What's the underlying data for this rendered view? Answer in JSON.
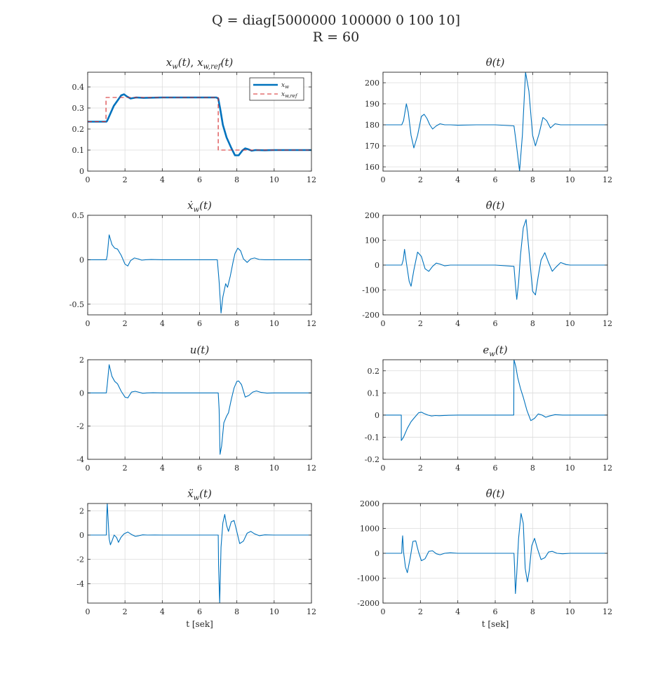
{
  "figure": {
    "suptitle_line1": "Q = diag[5000000  100000  0  100  10]",
    "suptitle_line2": "R = 60"
  },
  "chart_data": [
    {
      "type": "line",
      "title": "x_w(t), x_w,ref(t)",
      "xlabel": "",
      "xlim": [
        0,
        12
      ],
      "ylim": [
        0,
        0.47
      ],
      "grid": true,
      "xticks": [
        0,
        2,
        4,
        6,
        8,
        10,
        12
      ],
      "yticks": [
        0,
        0.1,
        0.2,
        0.3,
        0.4
      ],
      "ytick_labels": [
        "0",
        "0.1",
        "0.2",
        "0.3",
        "0.4"
      ],
      "legend": {
        "location": "top-right",
        "entries": [
          "x_w",
          "x_w,ref"
        ]
      },
      "series": [
        {
          "name": "x_w",
          "color": "#0072BD",
          "width": 2.6,
          "dash": "",
          "x": [
            0,
            1,
            1.05,
            1.2,
            1.4,
            1.6,
            1.8,
            1.95,
            2.1,
            2.3,
            2.6,
            3.0,
            4,
            5,
            6,
            6.9,
            7.0,
            7.1,
            7.25,
            7.45,
            7.7,
            7.9,
            8.1,
            8.3,
            8.45,
            8.6,
            8.8,
            9.0,
            9.5,
            10,
            12
          ],
          "y": [
            0.235,
            0.235,
            0.24,
            0.27,
            0.31,
            0.335,
            0.36,
            0.365,
            0.355,
            0.345,
            0.35,
            0.348,
            0.35,
            0.35,
            0.35,
            0.35,
            0.345,
            0.3,
            0.22,
            0.16,
            0.11,
            0.075,
            0.075,
            0.098,
            0.108,
            0.104,
            0.097,
            0.1,
            0.099,
            0.1,
            0.1
          ]
        },
        {
          "name": "x_w,ref",
          "color": "#D62728",
          "width": 1.1,
          "dash": "6,4",
          "x": [
            0,
            0.98,
            0.98,
            7.0,
            7.0,
            12
          ],
          "y": [
            0.235,
            0.235,
            0.35,
            0.35,
            0.1,
            0.1
          ]
        }
      ]
    },
    {
      "type": "line",
      "title": "θ(t)",
      "xlabel": "",
      "xlim": [
        0,
        12
      ],
      "ylim": [
        158,
        205
      ],
      "grid": true,
      "xticks": [
        0,
        2,
        4,
        6,
        8,
        10,
        12
      ],
      "yticks": [
        160,
        170,
        180,
        190,
        200
      ],
      "ytick_labels": [
        "160",
        "170",
        "180",
        "190",
        "200"
      ],
      "series": [
        {
          "name": "",
          "color": "#0072BD",
          "width": 1.1,
          "dash": "",
          "x": [
            0,
            1,
            1.1,
            1.25,
            1.35,
            1.5,
            1.65,
            1.85,
            2.05,
            2.2,
            2.35,
            2.5,
            2.65,
            2.85,
            3.05,
            3.3,
            3.6,
            4,
            5,
            6,
            7.0,
            7.1,
            7.3,
            7.45,
            7.62,
            7.8,
            8.0,
            8.15,
            8.35,
            8.55,
            8.75,
            8.95,
            9.2,
            9.5,
            10,
            12
          ],
          "y": [
            180,
            180,
            182,
            190,
            186,
            175,
            169,
            175,
            184,
            185,
            183,
            180,
            178,
            179.5,
            180.5,
            180,
            180,
            179.8,
            180,
            180,
            179.5,
            173,
            158,
            175,
            205,
            196,
            175,
            170,
            176,
            183.5,
            182,
            178.5,
            180.5,
            180,
            180,
            180
          ]
        }
      ]
    },
    {
      "type": "line",
      "title": "ẋ_w(t)",
      "xlabel": "",
      "xlim": [
        0,
        12
      ],
      "ylim": [
        -0.62,
        0.5
      ],
      "grid": true,
      "xticks": [
        0,
        2,
        4,
        6,
        8,
        10,
        12
      ],
      "yticks": [
        -0.5,
        0,
        0.5
      ],
      "ytick_labels": [
        "-0.5",
        "0",
        "0.5"
      ],
      "series": [
        {
          "name": "",
          "color": "#0072BD",
          "width": 1.1,
          "dash": "",
          "x": [
            0,
            1.0,
            1.05,
            1.15,
            1.3,
            1.45,
            1.6,
            1.8,
            2.0,
            2.15,
            2.3,
            2.5,
            2.7,
            2.9,
            3.1,
            3.4,
            4,
            5,
            6,
            6.95,
            7.05,
            7.15,
            7.25,
            7.4,
            7.5,
            7.65,
            7.8,
            7.9,
            8.05,
            8.2,
            8.35,
            8.55,
            8.75,
            8.95,
            9.2,
            9.5,
            10,
            12
          ],
          "y": [
            0,
            0,
            0.05,
            0.28,
            0.17,
            0.13,
            0.12,
            0.05,
            -0.05,
            -0.07,
            -0.01,
            0.02,
            0.01,
            -0.005,
            0,
            0.002,
            0,
            0,
            0,
            0,
            -0.25,
            -0.6,
            -0.42,
            -0.27,
            -0.31,
            -0.18,
            -0.02,
            0.07,
            0.13,
            0.1,
            0.01,
            -0.03,
            0.01,
            0.02,
            0.003,
            0,
            0,
            0
          ]
        }
      ]
    },
    {
      "type": "line",
      "title": "θ̇(t)",
      "xlabel": "",
      "xlim": [
        0,
        12
      ],
      "ylim": [
        -200,
        200
      ],
      "grid": true,
      "xticks": [
        0,
        2,
        4,
        6,
        8,
        10,
        12
      ],
      "yticks": [
        -200,
        -100,
        0,
        100,
        200
      ],
      "ytick_labels": [
        "-200",
        "-100",
        "0",
        "100",
        "200"
      ],
      "series": [
        {
          "name": "",
          "color": "#0072BD",
          "width": 1.1,
          "dash": "",
          "x": [
            0,
            1.0,
            1.08,
            1.15,
            1.25,
            1.4,
            1.5,
            1.65,
            1.85,
            2.05,
            2.25,
            2.45,
            2.65,
            2.85,
            3.05,
            3.3,
            3.6,
            4,
            5,
            6,
            7.0,
            7.08,
            7.15,
            7.25,
            7.35,
            7.5,
            7.65,
            7.8,
            8.0,
            8.15,
            8.3,
            8.45,
            8.65,
            8.85,
            9.05,
            9.25,
            9.5,
            9.8,
            10,
            12
          ],
          "y": [
            0,
            0,
            20,
            63,
            10,
            -65,
            -85,
            -20,
            52,
            35,
            -15,
            -25,
            -5,
            8,
            4,
            -3,
            0,
            0,
            0,
            0,
            -5,
            -80,
            -138,
            -70,
            40,
            150,
            183,
            60,
            -105,
            -120,
            -45,
            20,
            50,
            10,
            -25,
            -8,
            10,
            2,
            0,
            0
          ]
        }
      ]
    },
    {
      "type": "line",
      "title": "u(t)",
      "xlabel": "",
      "xlim": [
        0,
        12
      ],
      "ylim": [
        -4,
        2
      ],
      "grid": true,
      "xticks": [
        0,
        2,
        4,
        6,
        8,
        10,
        12
      ],
      "yticks": [
        -4,
        -2,
        0,
        2
      ],
      "ytick_labels": [
        "-4",
        "-2",
        "0",
        "2"
      ],
      "series": [
        {
          "name": "",
          "color": "#0072BD",
          "width": 1.1,
          "dash": "",
          "x": [
            0,
            1.0,
            1.05,
            1.15,
            1.3,
            1.45,
            1.6,
            1.8,
            2.0,
            2.15,
            2.35,
            2.55,
            2.75,
            2.95,
            3.2,
            3.5,
            4,
            5,
            6,
            7.0,
            7.05,
            7.1,
            7.18,
            7.3,
            7.45,
            7.55,
            7.7,
            7.85,
            8.0,
            8.1,
            8.25,
            8.45,
            8.65,
            8.85,
            9.05,
            9.3,
            9.6,
            10,
            12
          ],
          "y": [
            0,
            0,
            0.5,
            1.7,
            1.0,
            0.7,
            0.55,
            0.1,
            -0.25,
            -0.3,
            0.05,
            0.1,
            0.04,
            -0.02,
            0,
            0.01,
            0,
            0,
            0,
            0,
            -1.0,
            -3.7,
            -3.2,
            -1.8,
            -1.4,
            -1.2,
            -0.4,
            0.3,
            0.7,
            0.72,
            0.5,
            -0.25,
            -0.15,
            0.05,
            0.12,
            0.03,
            -0.01,
            0,
            0
          ]
        }
      ]
    },
    {
      "type": "line",
      "title": "e_w(t)",
      "xlabel": "",
      "xlim": [
        0,
        12
      ],
      "ylim": [
        -0.2,
        0.25
      ],
      "grid": true,
      "xticks": [
        0,
        2,
        4,
        6,
        8,
        10,
        12
      ],
      "yticks": [
        -0.2,
        -0.1,
        0,
        0.1,
        0.2
      ],
      "ytick_labels": [
        "-0.2",
        "-0.1",
        "0",
        "0.1",
        "0.2"
      ],
      "series": [
        {
          "name": "",
          "color": "#0072BD",
          "width": 1.1,
          "dash": "",
          "x": [
            0,
            0.98,
            0.98,
            1.1,
            1.3,
            1.5,
            1.7,
            1.9,
            2.05,
            2.2,
            2.4,
            2.6,
            2.8,
            3.0,
            3.5,
            4,
            5,
            6,
            6.99,
            7.0,
            7.1,
            7.2,
            7.35,
            7.5,
            7.7,
            7.9,
            8.1,
            8.3,
            8.5,
            8.7,
            8.9,
            9.2,
            9.6,
            10,
            12
          ],
          "y": [
            0,
            0,
            -0.115,
            -0.1,
            -0.06,
            -0.03,
            -0.01,
            0.01,
            0.013,
            0.007,
            0,
            -0.004,
            -0.002,
            -0.003,
            -0.001,
            0,
            0,
            0,
            0,
            0.25,
            0.22,
            0.17,
            0.12,
            0.08,
            0.02,
            -0.025,
            -0.015,
            0.005,
            0.0,
            -0.01,
            -0.004,
            0.002,
            0,
            0,
            0
          ]
        }
      ]
    },
    {
      "type": "line",
      "title": "ẍ_w(t)",
      "xlabel": "t [sek]",
      "xlim": [
        0,
        12
      ],
      "ylim": [
        -5.6,
        2.6
      ],
      "grid": true,
      "xticks": [
        0,
        2,
        4,
        6,
        8,
        10,
        12
      ],
      "yticks": [
        -4,
        -2,
        0,
        2
      ],
      "ytick_labels": [
        "-4",
        "-2",
        "0",
        "2"
      ],
      "series": [
        {
          "name": "",
          "color": "#0072BD",
          "width": 1.1,
          "dash": "",
          "x": [
            0,
            1.0,
            1.02,
            1.05,
            1.1,
            1.15,
            1.22,
            1.3,
            1.42,
            1.55,
            1.65,
            1.78,
            1.95,
            2.15,
            2.35,
            2.55,
            2.75,
            2.95,
            3.2,
            3.6,
            4,
            5,
            6,
            7.0,
            7.02,
            7.08,
            7.15,
            7.25,
            7.35,
            7.45,
            7.55,
            7.7,
            7.85,
            7.95,
            8.15,
            8.35,
            8.55,
            8.75,
            8.95,
            9.2,
            9.5,
            10,
            12
          ],
          "y": [
            0,
            0,
            1.5,
            2.6,
            1.2,
            -0.3,
            -0.8,
            -0.5,
            0.0,
            -0.2,
            -0.6,
            -0.2,
            0.1,
            0.25,
            0.05,
            -0.1,
            -0.05,
            0.02,
            0,
            0.01,
            0,
            0,
            0,
            0,
            -2.5,
            -5.6,
            -1.0,
            1.0,
            1.7,
            0.8,
            0.3,
            1.1,
            1.2,
            0.6,
            -0.7,
            -0.5,
            0.15,
            0.3,
            0.1,
            -0.05,
            0.02,
            0,
            0
          ]
        }
      ]
    },
    {
      "type": "line",
      "title": "θ̈(t)",
      "xlabel": "t [sek]",
      "xlim": [
        0,
        12
      ],
      "ylim": [
        -2000,
        2000
      ],
      "grid": true,
      "xticks": [
        0,
        2,
        4,
        6,
        8,
        10,
        12
      ],
      "yticks": [
        -2000,
        -1000,
        0,
        1000,
        2000
      ],
      "ytick_labels": [
        "-2000",
        "-1000",
        "0",
        "1000",
        "2000"
      ],
      "series": [
        {
          "name": "",
          "color": "#0072BD",
          "width": 1.1,
          "dash": "",
          "x": [
            0,
            1.0,
            1.02,
            1.05,
            1.1,
            1.2,
            1.3,
            1.45,
            1.6,
            1.75,
            1.9,
            2.05,
            2.25,
            2.45,
            2.65,
            2.85,
            3.05,
            3.3,
            3.6,
            4,
            5,
            6,
            7.0,
            7.03,
            7.08,
            7.15,
            7.25,
            7.38,
            7.5,
            7.6,
            7.72,
            7.82,
            7.95,
            8.1,
            8.25,
            8.45,
            8.65,
            8.85,
            9.05,
            9.3,
            9.6,
            10,
            12
          ],
          "y": [
            0,
            0,
            400,
            700,
            50,
            -550,
            -780,
            -200,
            480,
            500,
            50,
            -300,
            -220,
            80,
            100,
            -20,
            -60,
            0,
            20,
            0,
            0,
            0,
            0,
            -500,
            -1620,
            -800,
            600,
            1600,
            1200,
            -600,
            -1150,
            -700,
            300,
            600,
            200,
            -250,
            -180,
            50,
            80,
            0,
            -20,
            0,
            0
          ]
        }
      ]
    }
  ]
}
